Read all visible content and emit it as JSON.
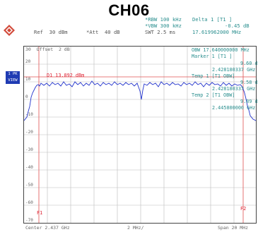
{
  "title": "CH06",
  "header": {
    "rbw": "*RBW 100 kHz",
    "vbw": "*VBW 300 kHz",
    "swt": "SWT 2.5 ms",
    "ref": "Ref  30 dBm",
    "att": "*Att  40 dB",
    "delta_label": "Delta 1 [T1 ]",
    "delta_value": "-0.45 dB",
    "delta_freq": "17.619962000 MHz"
  },
  "side_labels": {
    "offset": "30  Offset  2 dB",
    "badge1": "1 PK",
    "badge2": "VIEW",
    "d1": "D1 13.892 dBm"
  },
  "markers": {
    "obw": "OBW 17.640000000 MHz",
    "marker1": "Marker 1 [T1 ]",
    "m1_level": "9.60 dBm",
    "m1_freq": "2.428180337 GHz",
    "temp1": "Temp 1 [T1 OBW]",
    "t1_level": "9.58 dBm",
    "t1_freq": "2.428180337 GHz",
    "temp2": "Temp 2 [T1 OBW]",
    "t2_level": "9.89 dBm",
    "t2_freq": "2.445800000 GHz"
  },
  "yticks": [
    "20",
    "10",
    "0",
    "-10",
    "-20",
    "-30",
    "-40",
    "-50",
    "-60",
    "-70"
  ],
  "footer": {
    "center": "Center 2.437 GHz",
    "span_div": "2 MHz/",
    "span": "Span 20 MHz"
  },
  "flags": {
    "f1": "F1",
    "f2": "F2"
  },
  "colors": {
    "trace": "#2233cc",
    "marker_line": "#e05050",
    "text_teal": "#2b8f8f"
  }
}
